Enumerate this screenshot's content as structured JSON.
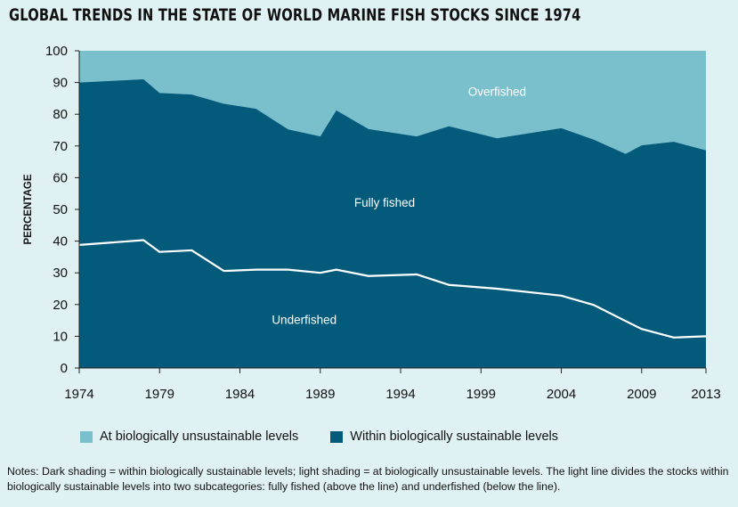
{
  "title": "GLOBAL TRENDS IN THE STATE OF WORLD MARINE FISH STOCKS SINCE 1974",
  "colors": {
    "unsustainable": "#79bfcc",
    "sustainable": "#045a7a",
    "line": "#ffffff",
    "background": "#e0f1f4"
  },
  "chart_data": {
    "type": "area",
    "ylabel": "PERCENTAGE",
    "xlabel": "",
    "xlim": [
      1974,
      2013
    ],
    "ylim": [
      0,
      100
    ],
    "x_ticks": [
      1974,
      1979,
      1984,
      1989,
      1994,
      1999,
      2004,
      2009,
      2013
    ],
    "y_ticks": [
      0,
      10,
      20,
      30,
      40,
      50,
      60,
      70,
      80,
      90,
      100
    ],
    "x": [
      1974,
      1976,
      1978,
      1979,
      1981,
      1983,
      1985,
      1987,
      1989,
      1990,
      1992,
      1995,
      1997,
      2000,
      2004,
      2006,
      2008,
      2009,
      2011,
      2013
    ],
    "series": [
      {
        "name": "Within biologically sustainable levels",
        "values": [
          90.0,
          90.5,
          91.0,
          86.7,
          86.2,
          83.3,
          81.7,
          75.2,
          73.0,
          81.2,
          75.3,
          73.0,
          76.2,
          72.4,
          75.6,
          72.0,
          67.5,
          70.2,
          71.3,
          68.6
        ]
      },
      {
        "name": "At biologically unsustainable levels",
        "values": [
          10.0,
          9.5,
          9.0,
          13.3,
          13.8,
          16.7,
          18.3,
          24.8,
          27.0,
          18.8,
          24.7,
          27.0,
          23.8,
          27.6,
          24.4,
          28.0,
          32.5,
          29.8,
          28.7,
          31.4
        ]
      }
    ],
    "divider_line": {
      "x": [
        1974,
        1978,
        1979,
        1981,
        1983,
        1985,
        1987,
        1989,
        1990,
        1992,
        1995,
        1997,
        2000,
        2004,
        2006,
        2008,
        2009,
        2011,
        2013
      ],
      "values": [
        38.8,
        40.3,
        36.6,
        37.1,
        30.6,
        31.0,
        31.0,
        30.0,
        31.0,
        29.0,
        29.5,
        26.2,
        25.0,
        22.8,
        19.9,
        14.8,
        12.3,
        9.6,
        10.0
      ]
    },
    "annotations": [
      {
        "text": "Overfished",
        "x": 2000,
        "y": 87
      },
      {
        "text": "Fully fished",
        "x": 1993,
        "y": 52
      },
      {
        "text": "Underfished",
        "x": 1988,
        "y": 15
      }
    ]
  },
  "legend": [
    {
      "label": "At biologically unsustainable levels",
      "color": "#79bfcc"
    },
    {
      "label": "Within biologically sustainable levels",
      "color": "#045a7a"
    }
  ],
  "notes": "Notes: Dark shading = within biologically sustainable levels; light shading = at biologically unsustainable levels. The light line divides the stocks within biologically sustainable levels into two subcategories: fully fished (above the line) and underfished (below the line)."
}
